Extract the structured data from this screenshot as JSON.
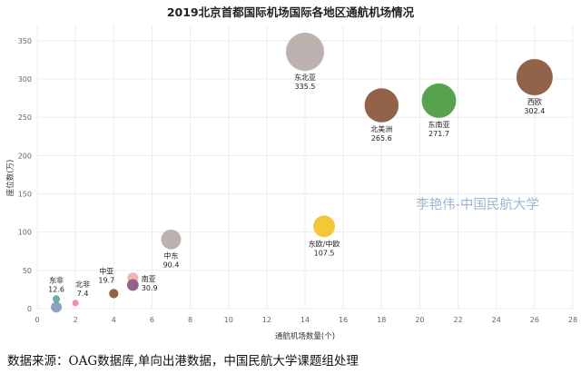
{
  "chart_data": {
    "type": "scatter",
    "title": "2019北京首都国际机场国际各地区通航机场情况",
    "xlabel": "通航机场数量(个)",
    "ylabel": "座位数(万)",
    "xlim": [
      0,
      28
    ],
    "ylim": [
      0,
      370
    ],
    "xticks": [
      0,
      2,
      4,
      6,
      8,
      10,
      12,
      14,
      16,
      18,
      20,
      22,
      24,
      26,
      28
    ],
    "yticks": [
      0,
      50,
      100,
      150,
      200,
      250,
      300,
      350
    ],
    "grid": true,
    "watermark": "李艳伟-中国民航大学",
    "points": [
      {
        "label": "东非",
        "x": 1,
        "y": 12.6,
        "value_label": "12.6",
        "color": "#5fae9f"
      },
      {
        "label": "北非",
        "x": 2,
        "y": 7.4,
        "value_label": "7.4",
        "color": "#f08a9e"
      },
      {
        "label": "中亚",
        "x": 4,
        "y": 19.7,
        "value_label": "19.7",
        "color": "#8a5a3c"
      },
      {
        "label": "南亚",
        "x": 5,
        "y": 30.9,
        "value_label": "30.9",
        "color": "#8e5a86"
      },
      {
        "label": "中东",
        "x": 7,
        "y": 90.4,
        "value_label": "90.4",
        "color": "#b8aeab"
      },
      {
        "label": "东北亚",
        "x": 14,
        "y": 335.5,
        "value_label": "335.5",
        "color": "#b8aeab"
      },
      {
        "label": "东欧/中欧",
        "x": 15,
        "y": 107.5,
        "value_label": "107.5",
        "color": "#f0c52e"
      },
      {
        "label": "北美洲",
        "x": 18,
        "y": 265.6,
        "value_label": "265.6",
        "color": "#8d5b3f"
      },
      {
        "label": "东南亚",
        "x": 21,
        "y": 271.7,
        "value_label": "271.7",
        "color": "#4e9d42"
      },
      {
        "label": "西欧",
        "x": 26,
        "y": 302.4,
        "value_label": "302.4",
        "color": "#8d5b3f"
      }
    ],
    "extra_markers": [
      {
        "x": 5,
        "y": 40,
        "color": "#f4a3a8"
      },
      {
        "x": 1,
        "y": 2,
        "color": "#7b8fb5"
      }
    ]
  },
  "source_note": "数据来源：OAG数据库,单向出港数据，中国民航大学课题组处理"
}
